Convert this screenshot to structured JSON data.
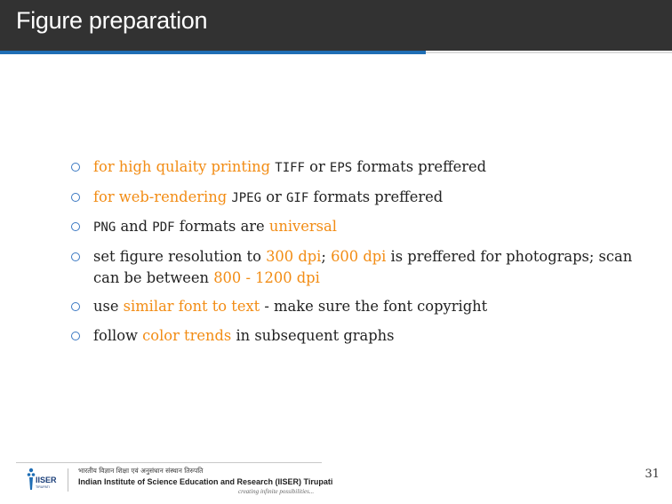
{
  "header": {
    "title": "Figure preparation"
  },
  "bullets": [
    {
      "segments": [
        {
          "text": "for high qulaity printing",
          "style": "hl"
        },
        {
          "text": " ",
          "style": "plain"
        },
        {
          "text": "TIFF",
          "style": "mono"
        },
        {
          "text": " or ",
          "style": "plain"
        },
        {
          "text": "EPS",
          "style": "mono"
        },
        {
          "text": " formats preffered",
          "style": "plain"
        }
      ]
    },
    {
      "segments": [
        {
          "text": "for web-rendering",
          "style": "hl"
        },
        {
          "text": " ",
          "style": "plain"
        },
        {
          "text": "JPEG",
          "style": "mono"
        },
        {
          "text": " or ",
          "style": "plain"
        },
        {
          "text": "GIF",
          "style": "mono"
        },
        {
          "text": " formats preffered",
          "style": "plain"
        }
      ]
    },
    {
      "segments": [
        {
          "text": "PNG",
          "style": "mono"
        },
        {
          "text": " and ",
          "style": "plain"
        },
        {
          "text": "PDF",
          "style": "mono"
        },
        {
          "text": " formats are ",
          "style": "plain"
        },
        {
          "text": "universal",
          "style": "hl"
        }
      ]
    },
    {
      "segments": [
        {
          "text": "set figure resolution to ",
          "style": "plain"
        },
        {
          "text": "300 dpi",
          "style": "hl"
        },
        {
          "text": "; ",
          "style": "plain"
        },
        {
          "text": "600 dpi",
          "style": "hl"
        },
        {
          "text": " is preffered for photograps; scan can be between ",
          "style": "plain"
        },
        {
          "text": "800 - 1200 dpi",
          "style": "hl"
        }
      ]
    },
    {
      "segments": [
        {
          "text": "use ",
          "style": "plain"
        },
        {
          "text": "similar font to text",
          "style": "hl"
        },
        {
          "text": " - make sure the font copyright",
          "style": "plain"
        }
      ]
    },
    {
      "segments": [
        {
          "text": "follow ",
          "style": "plain"
        },
        {
          "text": "color trends",
          "style": "hl"
        },
        {
          "text": " in subsequent graphs",
          "style": "plain"
        }
      ]
    }
  ],
  "footer": {
    "logo_text": "IISER",
    "logo_subtext": "TIRUPATI",
    "institute_hindi": "भारतीय विज्ञान शिक्षा एवं अनुसंधान संस्थान तिरुपति",
    "institute_name": "Indian Institute of Science Education and Research (IISER) Tirupati",
    "tagline": "creating infinite possibilities...",
    "page_number": "31"
  },
  "colors": {
    "header_bg": "#323232",
    "accent_blue": "#1f6eb5",
    "highlight_orange": "#f28c14",
    "bullet_marker": "#3a78c2"
  }
}
